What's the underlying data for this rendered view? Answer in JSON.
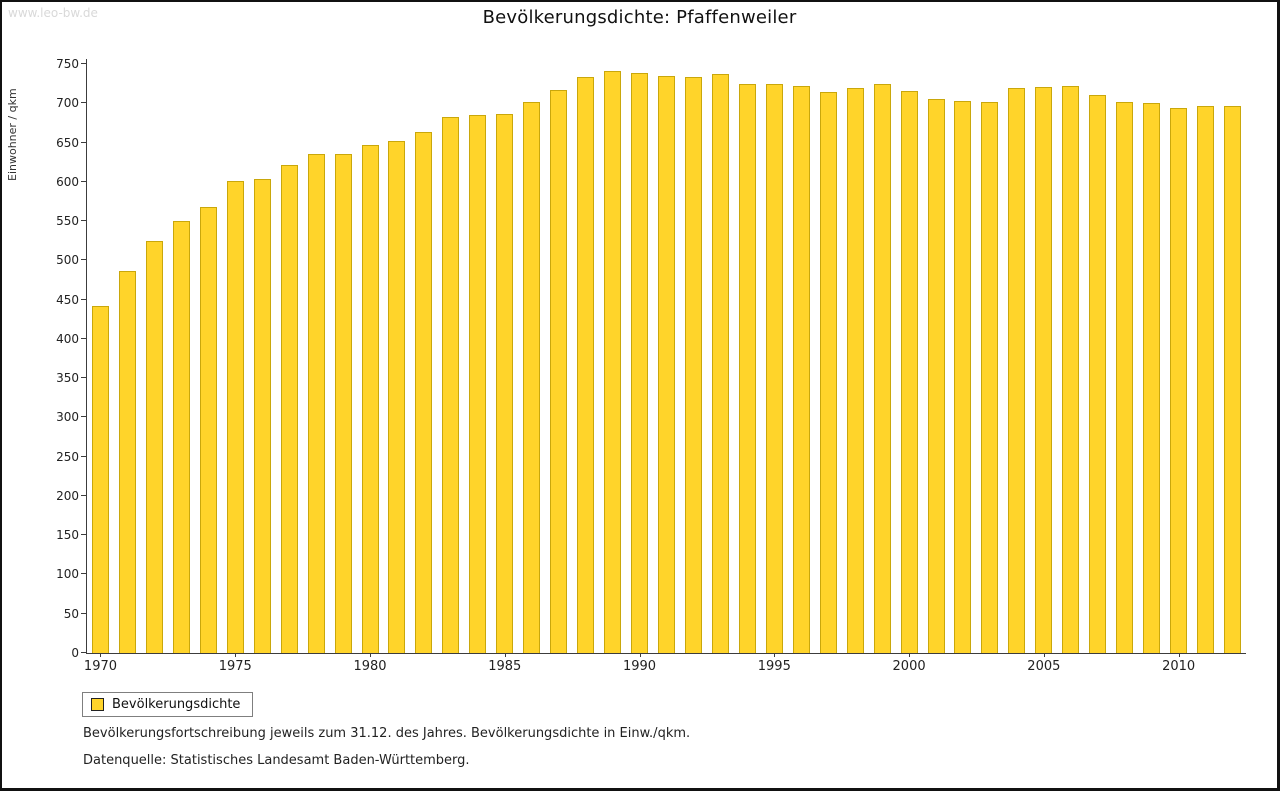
{
  "watermark": "www.leo-bw.de",
  "title": "Bevölkerungsdichte: Pfaffenweiler",
  "legend": {
    "label": "Bevölkerungsdichte",
    "swatch_color": "#FFD42A"
  },
  "captions": {
    "line1": "Bevölkerungsfortschreibung jeweils zum 31.12. des Jahres. Bevölkerungsdichte in Einw./qkm.",
    "line2": "Datenquelle: Statistisches Landesamt Baden-Württemberg."
  },
  "chart_data": {
    "type": "bar",
    "title": "Bevölkerungsdichte: Pfaffenweiler",
    "xlabel": "",
    "ylabel": "Einwohner / qkm",
    "ylim": [
      0,
      750
    ],
    "ytick_step": 50,
    "xticks_labeled": [
      1970,
      1975,
      1980,
      1985,
      1990,
      1995,
      2000,
      2005,
      2010
    ],
    "grid": false,
    "legend_position": "bottom-left",
    "bar_color": "#FFD42A",
    "bar_border_color": "#C9A70B",
    "series_name": "Bevölkerungsdichte",
    "categories": [
      1970,
      1971,
      1972,
      1973,
      1974,
      1975,
      1976,
      1977,
      1978,
      1979,
      1980,
      1981,
      1982,
      1983,
      1984,
      1985,
      1986,
      1987,
      1988,
      1989,
      1990,
      1991,
      1992,
      1993,
      1994,
      1995,
      1996,
      1997,
      1998,
      1999,
      2000,
      2001,
      2002,
      2003,
      2004,
      2005,
      2006,
      2007,
      2008,
      2009,
      2010,
      2011,
      2012
    ],
    "values": [
      442,
      487,
      525,
      550,
      568,
      601,
      603,
      621,
      636,
      636,
      647,
      652,
      663,
      682,
      685,
      686,
      701,
      717,
      734,
      741,
      738,
      735,
      733,
      737,
      724,
      724,
      722,
      714,
      720,
      724,
      715,
      705,
      703,
      701,
      719,
      721,
      722,
      711,
      702,
      700,
      694,
      697,
      696
    ]
  }
}
